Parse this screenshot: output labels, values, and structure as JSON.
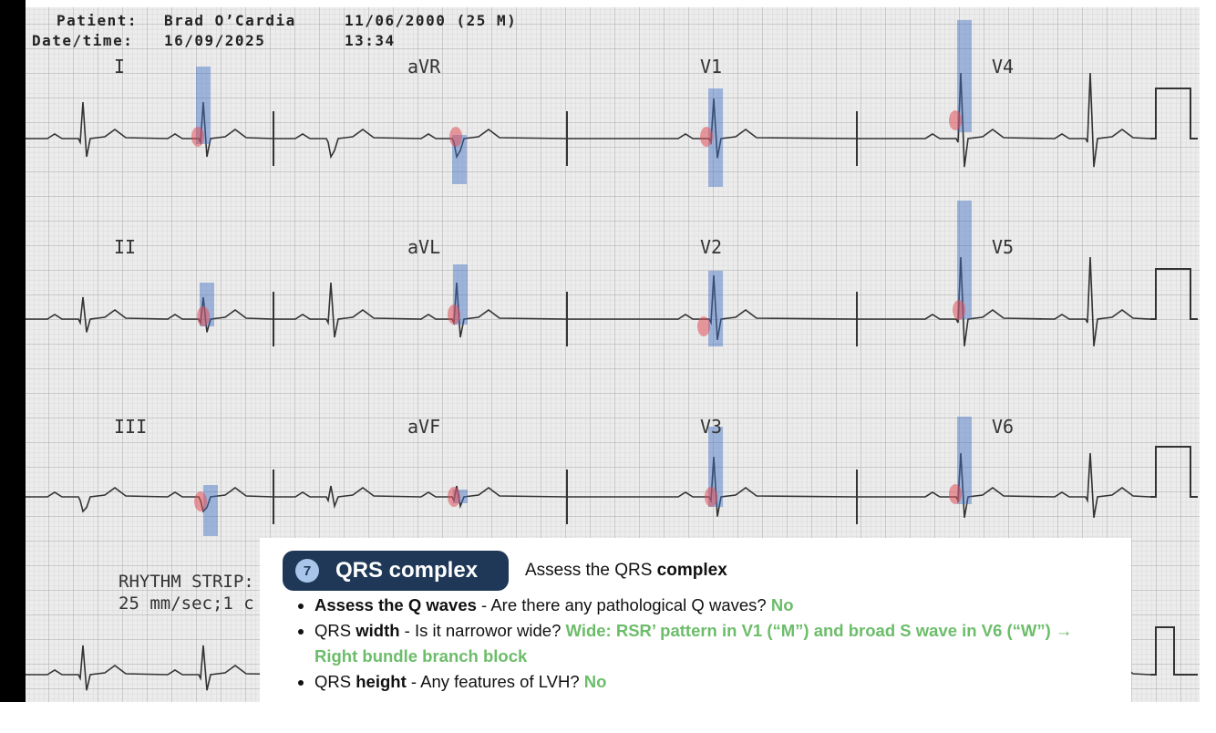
{
  "header": {
    "patient_label": "Patient:",
    "patient_name": "Brad O’Cardia",
    "dob": "11/06/2000 (25 M)",
    "datetime_label": "Date/time:",
    "date": "16/09/2025",
    "time": "13:34"
  },
  "leads": [
    "I",
    "aVR",
    "V1",
    "V4",
    "II",
    "aVL",
    "V2",
    "V5",
    "III",
    "aVF",
    "V3",
    "V6"
  ],
  "rhythm_strip": {
    "label": "RHYTHM STRIP:",
    "speed": "25 mm/sec;1 c"
  },
  "card": {
    "step": "7",
    "title": "QRS complex",
    "subtitle": [
      {
        "text": "Assess the QRS ",
        "style": "normal"
      },
      {
        "text": "complex",
        "style": "bold"
      }
    ],
    "items": [
      [
        {
          "text": "Assess the Q waves",
          "style": "bold"
        },
        {
          "text": " - Are there any pathological Q waves? ",
          "style": "normal"
        },
        {
          "text": "No",
          "style": "green"
        }
      ],
      [
        {
          "text": "QRS ",
          "style": "normal"
        },
        {
          "text": "width",
          "style": "bold"
        },
        {
          "text": " - Is it narrowor wide? ",
          "style": "normal"
        },
        {
          "text": "Wide: RSR’ pattern in V1 (“M”) and broad S wave in V6 (“W”) → Right bundle branch block",
          "style": "green"
        }
      ],
      [
        {
          "text": "QRS ",
          "style": "normal"
        },
        {
          "text": "height",
          "style": "bold"
        },
        {
          "text": " - Any features of LVH? ",
          "style": "normal"
        },
        {
          "text": "No",
          "style": "green"
        }
      ]
    ]
  }
}
